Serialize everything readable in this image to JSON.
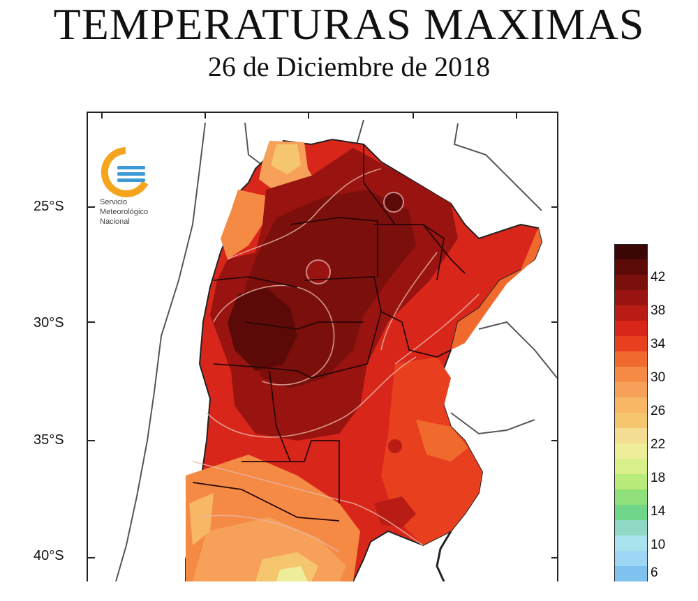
{
  "title": "TEMPERATURAS MAXIMAS",
  "subtitle": "26 de Diciembre de 2018",
  "logo": {
    "lines": [
      "Servicio",
      "Meteorológico",
      "Nacional"
    ]
  },
  "latitude_labels": [
    "25°S",
    "30°S",
    "35°S",
    "40°S"
  ],
  "legend": {
    "labels": [
      "42",
      "38",
      "34",
      "30",
      "26",
      "22",
      "18",
      "14",
      "10",
      "6"
    ],
    "colors": [
      "#3b0705",
      "#5c0a08",
      "#7a0f0c",
      "#991410",
      "#b81c14",
      "#d9261a",
      "#e8401f",
      "#f06a2e",
      "#f58a45",
      "#f7a05a",
      "#f7b765",
      "#f5c66e",
      "#f3dd93",
      "#eded9a",
      "#d9f08a",
      "#b8eb7a",
      "#8fe07a",
      "#6fd68a",
      "#8fd9c4",
      "#a8e3ee",
      "#9ed6f5",
      "#7fc2f0"
    ]
  },
  "colors": {
    "hot": "#7a0f0c",
    "warm": "#d9261a",
    "mild": "#f58a45",
    "cool": "#f3dd93"
  }
}
